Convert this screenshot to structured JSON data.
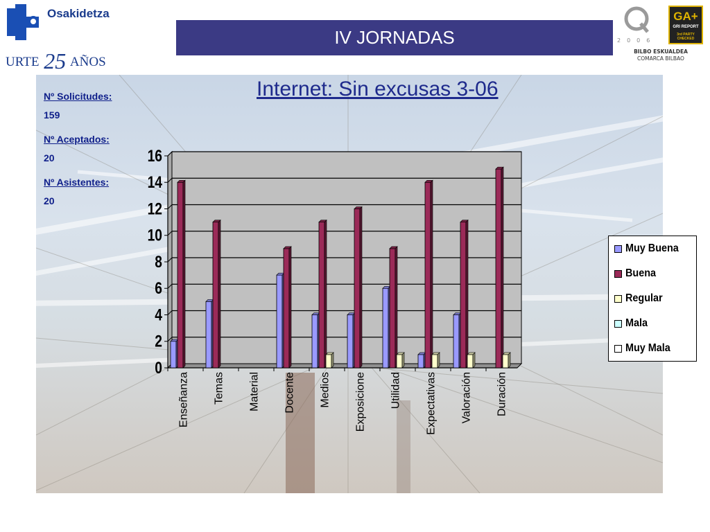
{
  "header": {
    "org_name": "Osakidetza",
    "urte_label": "URTE",
    "urte_number": "25",
    "anos_label": "AÑOS",
    "title": "IV JORNADAS",
    "q_year": "2006",
    "gri_top": "GA+",
    "gri_line1": "GRI REPORT",
    "gri_line2": "3rd PARTY CHECKED",
    "org_right_1": "BILBO ESKUALDEA",
    "org_right_2": "COMARCA BILBAO"
  },
  "stats": [
    {
      "label": "Nº Solicitudes:",
      "value": "159"
    },
    {
      "label": "Nº Aceptados:",
      "value": "20"
    },
    {
      "label": "Nº Asistentes:",
      "value": "20"
    }
  ],
  "subtitle": "Internet: Sin excusas 3-06",
  "colors": {
    "title_bar": "#3b3a84",
    "text_blue": "#0f1f8a",
    "plot_bg": "#c0c0c0"
  },
  "chart_data": {
    "type": "bar",
    "categories": [
      "Enseñanza",
      "Temas",
      "Material",
      "Docente",
      "Medios",
      "Exposicione",
      "Utilidad",
      "Expectativas",
      "Valoración",
      "Duración"
    ],
    "series": [
      {
        "name": "Muy Buena",
        "color": "#9a9aff",
        "values": [
          2,
          5,
          0,
          7,
          4,
          4,
          6,
          1,
          4,
          0
        ]
      },
      {
        "name": "Buena",
        "color": "#9b2a58",
        "values": [
          14,
          11,
          0,
          9,
          11,
          12,
          9,
          14,
          11,
          15
        ]
      },
      {
        "name": "Regular",
        "color": "#ffffcc",
        "values": [
          0,
          0,
          0,
          0,
          1,
          0,
          1,
          1,
          1,
          1
        ]
      },
      {
        "name": "Mala",
        "color": "#ccffff",
        "values": [
          0,
          0,
          0,
          0,
          0,
          0,
          0,
          0,
          0,
          0
        ]
      },
      {
        "name": "Muy Mala",
        "color": "#ffffff",
        "values": [
          0,
          0,
          0,
          0,
          0,
          0,
          0,
          0,
          0,
          0
        ]
      }
    ],
    "ylim": [
      0,
      16
    ],
    "yticks": [
      0,
      2,
      4,
      6,
      8,
      10,
      12,
      14,
      16
    ],
    "grid": true,
    "legend_position": "right"
  }
}
